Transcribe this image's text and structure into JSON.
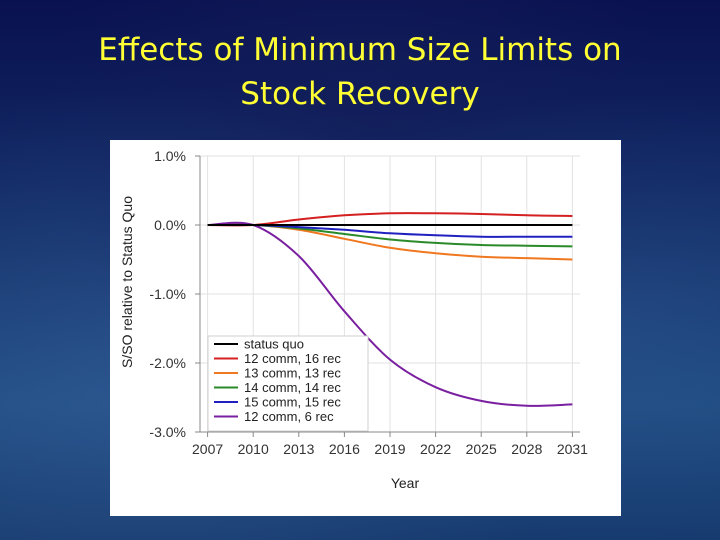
{
  "slide": {
    "title_line1": "Effects of Minimum Size Limits on",
    "title_line2": "Stock Recovery"
  },
  "chart_data": {
    "type": "line",
    "title": "",
    "xlabel": "Year",
    "ylabel": "S/SO relative to Status Quo",
    "x": [
      2007,
      2010,
      2013,
      2016,
      2019,
      2022,
      2025,
      2028,
      2031
    ],
    "xticks": [
      "2007",
      "2010",
      "2013",
      "2016",
      "2019",
      "2022",
      "2025",
      "2028",
      "2031"
    ],
    "yticks": [
      1.0,
      0.0,
      -1.0,
      -2.0,
      -3.0
    ],
    "ytick_labels": [
      "1.0%",
      "0.0%",
      "-1.0%",
      "-2.0%",
      "-3.0%"
    ],
    "xlim": [
      2006.5,
      2031.5
    ],
    "ylim": [
      -3.0,
      1.0
    ],
    "legend_position": "bottom-left",
    "grid": true,
    "series": [
      {
        "name": "status quo",
        "color": "#000000",
        "values": [
          0,
          0,
          0,
          0,
          0,
          0,
          0,
          0,
          0
        ]
      },
      {
        "name": "12 comm, 16 rec",
        "color": "#d42020",
        "values": [
          0,
          0,
          0.08,
          0.14,
          0.17,
          0.17,
          0.16,
          0.14,
          0.13
        ]
      },
      {
        "name": "13 comm, 13 rec",
        "color": "#f07820",
        "values": [
          0,
          0,
          -0.07,
          -0.2,
          -0.33,
          -0.41,
          -0.46,
          -0.48,
          -0.5
        ]
      },
      {
        "name": "14 comm, 14 rec",
        "color": "#2a8a2a",
        "values": [
          0,
          0,
          -0.05,
          -0.13,
          -0.21,
          -0.26,
          -0.29,
          -0.3,
          -0.31
        ]
      },
      {
        "name": "15 comm, 15 rec",
        "color": "#2020c0",
        "values": [
          0,
          0,
          -0.03,
          -0.07,
          -0.12,
          -0.15,
          -0.17,
          -0.17,
          -0.17
        ]
      },
      {
        "name": "12 comm, 6 rec",
        "color": "#7a1fa0",
        "values": [
          0,
          0,
          -0.45,
          -1.25,
          -1.95,
          -2.35,
          -2.55,
          -2.62,
          -2.6
        ]
      }
    ]
  }
}
